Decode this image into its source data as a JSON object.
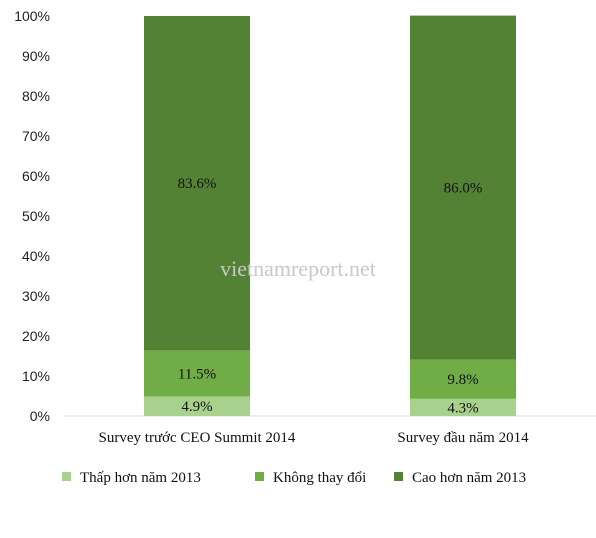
{
  "watermark": "vietnamreport.net",
  "chart_data": {
    "type": "bar",
    "stacked": true,
    "percent_stacked": true,
    "categories": [
      "Survey trước CEO Summit 2014",
      "Survey đầu năm 2014"
    ],
    "series": [
      {
        "name": "Thấp hơn năm 2013",
        "values": [
          4.9,
          4.3
        ],
        "labels": [
          "4.9%",
          "4.3%"
        ],
        "color": "#a9d18e"
      },
      {
        "name": "Không thay đổi",
        "values": [
          11.5,
          9.8
        ],
        "labels": [
          "11.5%",
          "9.8%"
        ],
        "color": "#70ad47"
      },
      {
        "name": "Cao hơn năm 2013",
        "values": [
          83.6,
          86.0
        ],
        "labels": [
          "83.6%",
          "86.0%"
        ],
        "color": "#548235"
      }
    ],
    "y_ticks": [
      "0%",
      "10%",
      "20%",
      "30%",
      "40%",
      "50%",
      "60%",
      "70%",
      "80%",
      "90%",
      "100%"
    ],
    "ylim": [
      0,
      100
    ],
    "grid": false,
    "legend_position": "bottom"
  }
}
